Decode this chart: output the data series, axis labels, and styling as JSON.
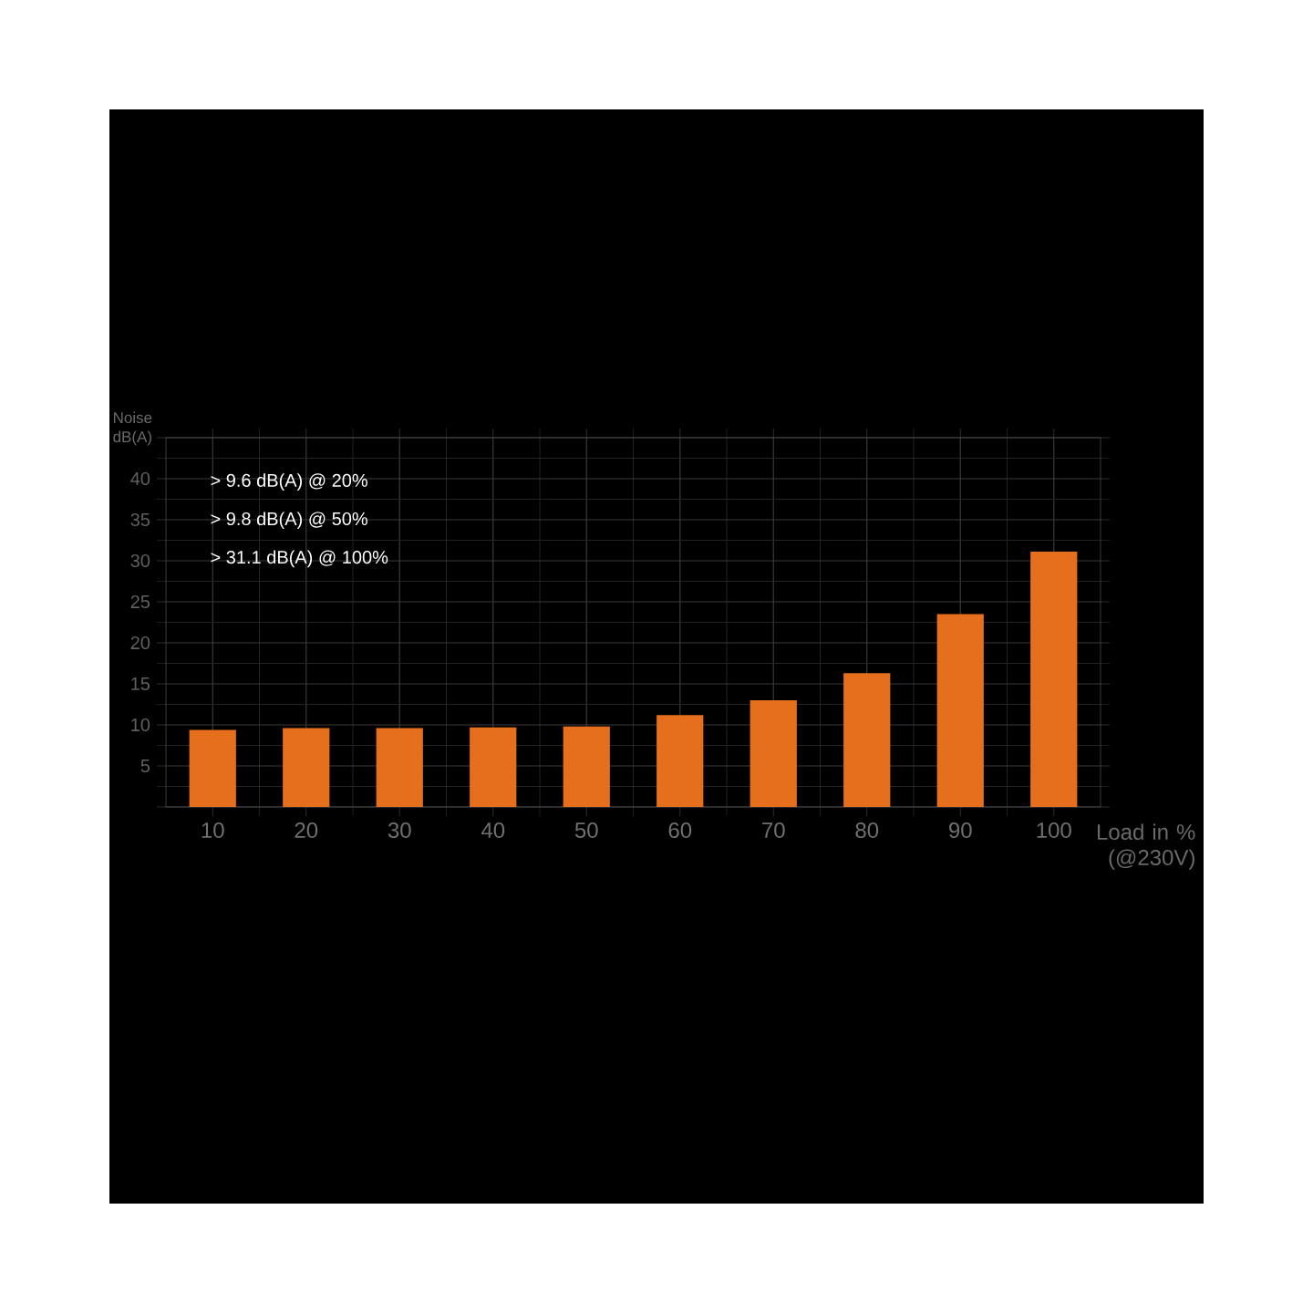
{
  "chart_data": {
    "type": "bar",
    "xlabel": "Load in % (@230V)",
    "ylabel": "Noise dB(A)",
    "categories": [
      "10",
      "20",
      "30",
      "40",
      "50",
      "60",
      "70",
      "80",
      "90",
      "100"
    ],
    "values": [
      9.4,
      9.6,
      9.6,
      9.7,
      9.8,
      11.2,
      13.0,
      16.3,
      23.5,
      31.1
    ],
    "color": "#e56f1c",
    "ylim": [
      0,
      45
    ],
    "yticks": [
      {
        "value": 0,
        "label": null
      },
      5,
      10,
      15,
      20,
      25,
      30,
      35,
      40,
      {
        "value": 45,
        "label": null
      }
    ],
    "grid": true,
    "annotations": [
      "> 9.6 dB(A) @ 20%",
      "> 9.8 dB(A) @ 50%",
      "> 31.1 dB(A) @ 100%"
    ]
  }
}
